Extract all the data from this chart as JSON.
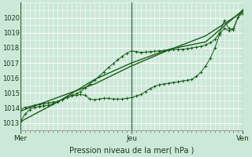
{
  "xlabel": "Pression niveau de la mer( hPa )",
  "bg_color": "#cce8d8",
  "plot_bg_color": "#cce8d8",
  "grid_color": "#ffffff",
  "line_color": "#1a5c1a",
  "xlim": [
    0,
    48
  ],
  "ylim": [
    1012.5,
    1021.0
  ],
  "yticks": [
    1013,
    1014,
    1015,
    1016,
    1017,
    1018,
    1019,
    1020
  ],
  "day_labels": [
    "Mer",
    "Jeu",
    "Ven"
  ],
  "day_positions": [
    0,
    24,
    48
  ],
  "series_detailed": [
    [
      0,
      1013.1
    ],
    [
      1,
      1013.6
    ],
    [
      2,
      1013.9
    ],
    [
      3,
      1014.05
    ],
    [
      4,
      1014.1
    ],
    [
      5,
      1014.15
    ],
    [
      6,
      1014.2
    ],
    [
      7,
      1014.3
    ],
    [
      8,
      1014.4
    ],
    [
      9,
      1014.55
    ],
    [
      10,
      1014.7
    ],
    [
      11,
      1014.85
    ],
    [
      12,
      1014.95
    ],
    [
      13,
      1015.1
    ],
    [
      14,
      1015.35
    ],
    [
      15,
      1015.6
    ],
    [
      16,
      1015.85
    ],
    [
      17,
      1016.1
    ],
    [
      18,
      1016.4
    ],
    [
      19,
      1016.7
    ],
    [
      20,
      1016.95
    ],
    [
      21,
      1017.2
    ],
    [
      22,
      1017.45
    ],
    [
      23,
      1017.65
    ],
    [
      24,
      1017.8
    ],
    [
      25,
      1017.75
    ],
    [
      26,
      1017.7
    ],
    [
      27,
      1017.72
    ],
    [
      28,
      1017.75
    ],
    [
      29,
      1017.77
    ],
    [
      30,
      1017.8
    ],
    [
      31,
      1017.82
    ],
    [
      32,
      1017.85
    ],
    [
      33,
      1017.88
    ],
    [
      34,
      1017.9
    ],
    [
      35,
      1017.92
    ],
    [
      36,
      1017.95
    ],
    [
      37,
      1018.0
    ],
    [
      38,
      1018.05
    ],
    [
      39,
      1018.1
    ],
    [
      40,
      1018.2
    ],
    [
      41,
      1018.35
    ],
    [
      42,
      1018.55
    ],
    [
      43,
      1019.0
    ],
    [
      44,
      1019.8
    ],
    [
      45,
      1019.3
    ],
    [
      46,
      1019.2
    ],
    [
      47,
      1020.05
    ],
    [
      48,
      1020.5
    ]
  ],
  "series_bumpy": [
    [
      0,
      1013.9
    ],
    [
      1,
      1014.05
    ],
    [
      2,
      1014.1
    ],
    [
      3,
      1014.2
    ],
    [
      4,
      1014.25
    ],
    [
      5,
      1014.3
    ],
    [
      6,
      1014.35
    ],
    [
      7,
      1014.4
    ],
    [
      8,
      1014.45
    ],
    [
      9,
      1014.55
    ],
    [
      10,
      1014.7
    ],
    [
      11,
      1014.8
    ],
    [
      12,
      1014.85
    ],
    [
      13,
      1014.9
    ],
    [
      14,
      1014.85
    ],
    [
      15,
      1014.6
    ],
    [
      16,
      1014.55
    ],
    [
      17,
      1014.6
    ],
    [
      18,
      1014.65
    ],
    [
      19,
      1014.65
    ],
    [
      20,
      1014.6
    ],
    [
      21,
      1014.6
    ],
    [
      22,
      1014.6
    ],
    [
      23,
      1014.65
    ],
    [
      24,
      1014.7
    ],
    [
      25,
      1014.8
    ],
    [
      26,
      1014.9
    ],
    [
      27,
      1015.1
    ],
    [
      28,
      1015.3
    ],
    [
      29,
      1015.45
    ],
    [
      30,
      1015.55
    ],
    [
      31,
      1015.6
    ],
    [
      32,
      1015.65
    ],
    [
      33,
      1015.7
    ],
    [
      34,
      1015.75
    ],
    [
      35,
      1015.8
    ],
    [
      36,
      1015.85
    ],
    [
      37,
      1015.9
    ],
    [
      38,
      1016.1
    ],
    [
      39,
      1016.4
    ],
    [
      40,
      1016.8
    ],
    [
      41,
      1017.3
    ],
    [
      42,
      1018.0
    ],
    [
      43,
      1018.9
    ],
    [
      44,
      1019.3
    ],
    [
      45,
      1019.15
    ],
    [
      46,
      1019.3
    ],
    [
      47,
      1020.05
    ],
    [
      48,
      1020.3
    ]
  ],
  "series_smooth1": [
    [
      0,
      1013.1
    ],
    [
      8,
      1014.4
    ],
    [
      16,
      1015.9
    ],
    [
      24,
      1017.0
    ],
    [
      32,
      1017.9
    ],
    [
      40,
      1018.4
    ],
    [
      48,
      1020.5
    ]
  ],
  "series_smooth2": [
    [
      0,
      1013.8
    ],
    [
      8,
      1014.7
    ],
    [
      16,
      1015.6
    ],
    [
      24,
      1016.8
    ],
    [
      32,
      1017.85
    ],
    [
      40,
      1018.8
    ],
    [
      48,
      1020.4
    ]
  ]
}
